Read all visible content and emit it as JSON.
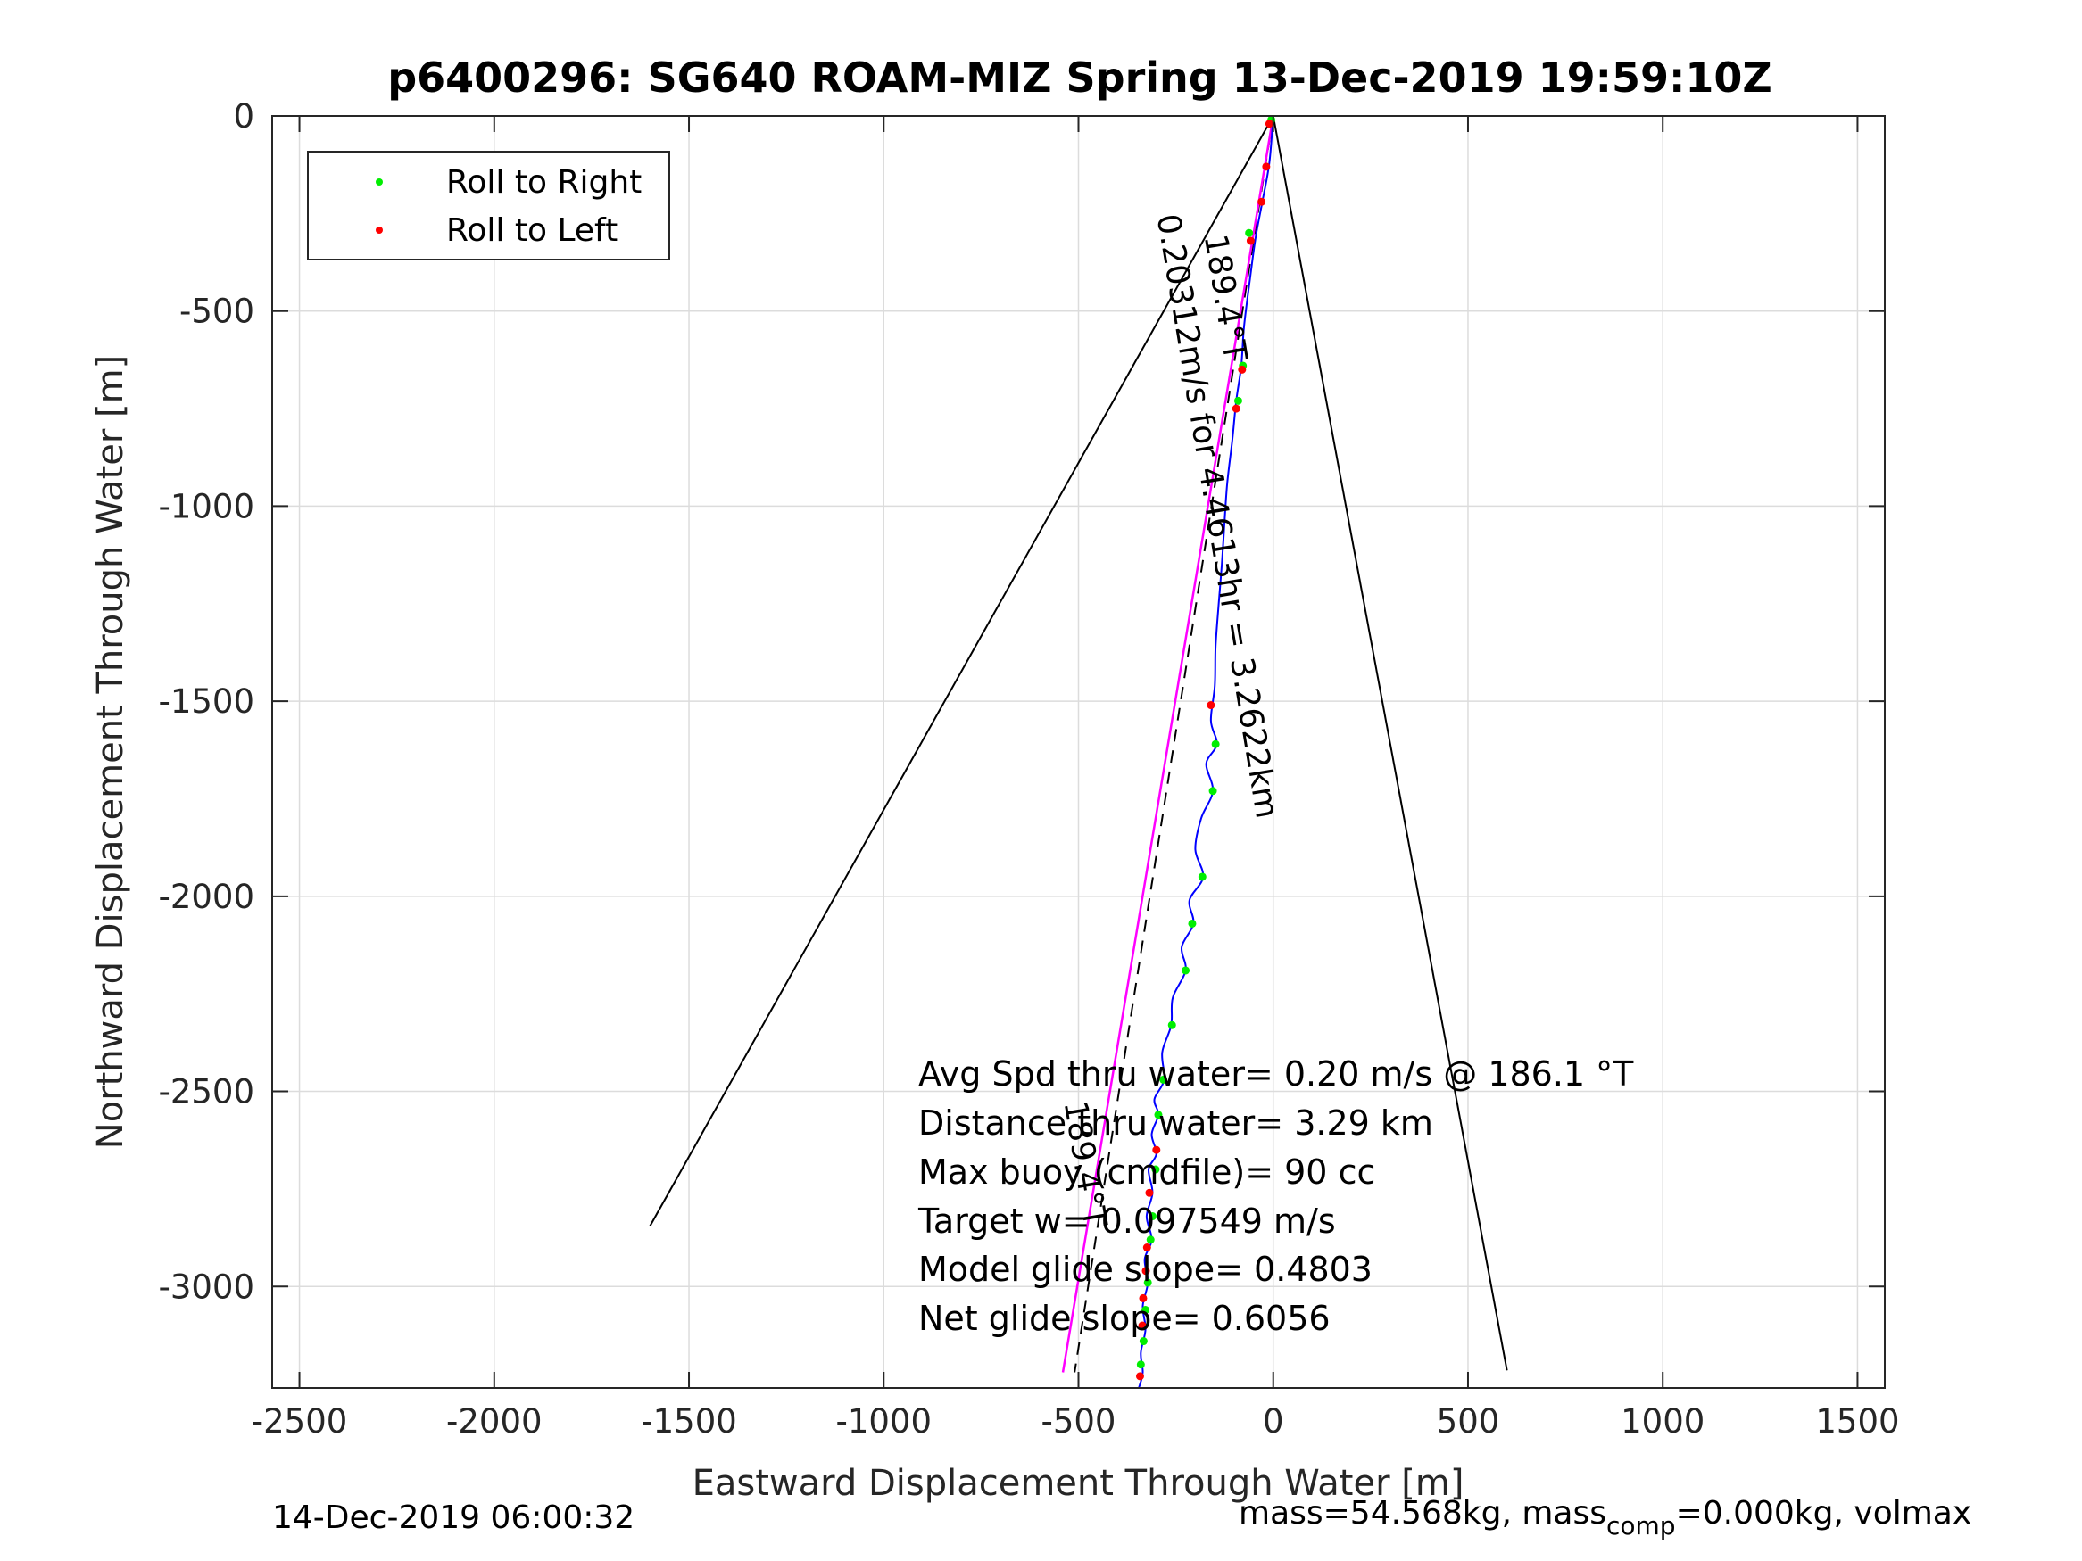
{
  "chart_data": {
    "type": "line",
    "title": "p6400296: SG640 ROAM-MIZ Spring 13-Dec-2019 19:59:10Z",
    "xlabel": "Eastward Displacement Through Water [m]",
    "ylabel": "Northward Displacement Through Water [m]",
    "xlim": [
      -2570,
      1570
    ],
    "ylim": [
      -3260,
      0
    ],
    "xticks": [
      -2500,
      -2000,
      -1500,
      -1000,
      -500,
      0,
      500,
      1000,
      1500
    ],
    "yticks": [
      0,
      -500,
      -1000,
      -1500,
      -2000,
      -2500,
      -3000
    ],
    "xtick_labels": [
      "-2500",
      "-2000",
      "-1500",
      "-1000",
      "-500",
      "0",
      "500",
      "1000",
      "1500"
    ],
    "ytick_labels": [
      "0",
      "-500",
      "-1000",
      "-1500",
      "-2000",
      "-2500",
      "-3000"
    ],
    "grid": true,
    "legend_position": "top-left",
    "colors": {
      "track": "#0000ff",
      "heading_line": "#ff00ff",
      "cone": "#000000",
      "roll_right": "#00ee00",
      "roll_left": "#ff0000",
      "grid": "#dcdcdc",
      "axis": "#262626"
    },
    "legend": [
      {
        "label": "Roll to Right",
        "color": "#00ee00"
      },
      {
        "label": "Roll to Left",
        "color": "#ff0000"
      }
    ],
    "track_path": [
      {
        "x": 0,
        "y": 0
      },
      {
        "x": -10,
        "y": -120
      },
      {
        "x": -28,
        "y": -220
      },
      {
        "x": -45,
        "y": -310
      },
      {
        "x": -60,
        "y": -420
      },
      {
        "x": -75,
        "y": -540
      },
      {
        "x": -82,
        "y": -640
      },
      {
        "x": -95,
        "y": -730
      },
      {
        "x": -105,
        "y": -830
      },
      {
        "x": -118,
        "y": -940
      },
      {
        "x": -125,
        "y": -1040
      },
      {
        "x": -132,
        "y": -1150
      },
      {
        "x": -140,
        "y": -1250
      },
      {
        "x": -148,
        "y": -1360
      },
      {
        "x": -150,
        "y": -1460
      },
      {
        "x": -160,
        "y": -1550
      },
      {
        "x": -145,
        "y": -1610
      },
      {
        "x": -172,
        "y": -1660
      },
      {
        "x": -155,
        "y": -1730
      },
      {
        "x": -185,
        "y": -1800
      },
      {
        "x": -200,
        "y": -1880
      },
      {
        "x": -180,
        "y": -1950
      },
      {
        "x": -215,
        "y": -2010
      },
      {
        "x": -205,
        "y": -2070
      },
      {
        "x": -235,
        "y": -2130
      },
      {
        "x": -225,
        "y": -2190
      },
      {
        "x": -258,
        "y": -2260
      },
      {
        "x": -262,
        "y": -2330
      },
      {
        "x": -285,
        "y": -2400
      },
      {
        "x": -280,
        "y": -2470
      },
      {
        "x": -305,
        "y": -2520
      },
      {
        "x": -295,
        "y": -2560
      },
      {
        "x": -312,
        "y": -2610
      },
      {
        "x": -300,
        "y": -2660
      },
      {
        "x": -320,
        "y": -2700
      },
      {
        "x": -310,
        "y": -2760
      },
      {
        "x": -325,
        "y": -2820
      },
      {
        "x": -312,
        "y": -2880
      },
      {
        "x": -330,
        "y": -2930
      },
      {
        "x": -322,
        "y": -2990
      },
      {
        "x": -335,
        "y": -3050
      },
      {
        "x": -328,
        "y": -3110
      },
      {
        "x": -340,
        "y": -3170
      },
      {
        "x": -335,
        "y": -3220
      },
      {
        "x": -345,
        "y": -3260
      }
    ],
    "roll_right_points": [
      {
        "x": -5,
        "y": -10
      },
      {
        "x": -62,
        "y": -300
      },
      {
        "x": -78,
        "y": -640
      },
      {
        "x": -90,
        "y": -730
      },
      {
        "x": -148,
        "y": -1610
      },
      {
        "x": -155,
        "y": -1730
      },
      {
        "x": -182,
        "y": -1950
      },
      {
        "x": -208,
        "y": -2070
      },
      {
        "x": -225,
        "y": -2190
      },
      {
        "x": -260,
        "y": -2330
      },
      {
        "x": -282,
        "y": -2470
      },
      {
        "x": -295,
        "y": -2560
      },
      {
        "x": -302,
        "y": -2700
      },
      {
        "x": -310,
        "y": -2820
      },
      {
        "x": -315,
        "y": -2880
      },
      {
        "x": -322,
        "y": -2990
      },
      {
        "x": -328,
        "y": -3060
      },
      {
        "x": -333,
        "y": -3140
      },
      {
        "x": -340,
        "y": -3200
      }
    ],
    "roll_left_points": [
      {
        "x": -10,
        "y": -20
      },
      {
        "x": -18,
        "y": -130
      },
      {
        "x": -30,
        "y": -220
      },
      {
        "x": -58,
        "y": -320
      },
      {
        "x": -80,
        "y": -650
      },
      {
        "x": -95,
        "y": -750
      },
      {
        "x": -160,
        "y": -1510
      },
      {
        "x": -300,
        "y": -2650
      },
      {
        "x": -318,
        "y": -2760
      },
      {
        "x": -324,
        "y": -2900
      },
      {
        "x": -327,
        "y": -2960
      },
      {
        "x": -334,
        "y": -3030
      },
      {
        "x": -336,
        "y": -3100
      },
      {
        "x": -342,
        "y": -3230
      }
    ],
    "heading_line": [
      {
        "x": 0,
        "y": 0
      },
      {
        "x": -540,
        "y": -3220
      }
    ],
    "cone_lines": [
      [
        {
          "x": 0,
          "y": 0
        },
        {
          "x": -1600,
          "y": -2845
        }
      ],
      [
        {
          "x": 0,
          "y": 0
        },
        {
          "x": 600,
          "y": -3215
        }
      ]
    ],
    "dashed_line": [
      {
        "x": 0,
        "y": 0
      },
      {
        "x": -510,
        "y": -3220
      }
    ],
    "rotated_labels": [
      {
        "text": "189.4°T",
        "x": -150,
        "y": -470,
        "angle": 80.6
      },
      {
        "text": "0.20312m/s for 4.4613hr = 3.2622km",
        "x": -170,
        "y": -1030,
        "angle": 80.6
      },
      {
        "text": "189.4°T",
        "x": -510,
        "y": -2690,
        "angle": 80.6
      }
    ],
    "stats": [
      "Avg Spd thru water=  0.20 m/s @ 186.1 °T",
      "Distance thru water=  3.29 km",
      "Max buoy (cmdfile)= 90 cc",
      "Target w= 0.097549 m/s",
      "Model glide slope= 0.4803",
      "Net glide slope= 0.6056"
    ],
    "footer_left": "14-Dec-2019 06:00:32",
    "footer_right_prefix": "mass=54.568kg, mass",
    "footer_right_sub": "comp",
    "footer_right_suffix": "=0.000kg, volmax"
  }
}
